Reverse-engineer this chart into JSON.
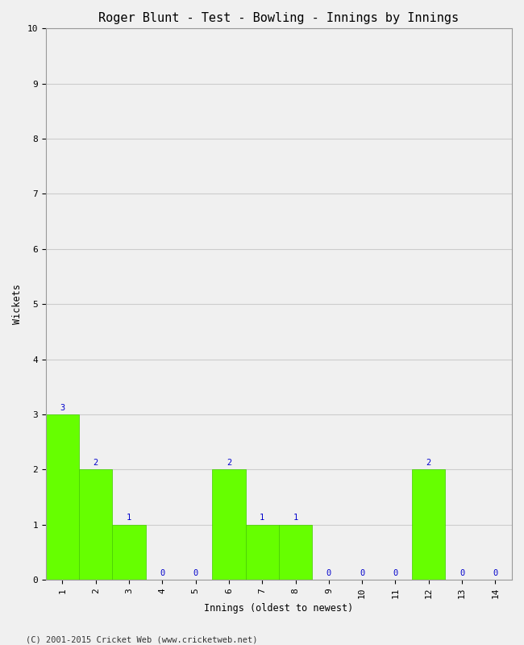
{
  "title": "Roger Blunt - Test - Bowling - Innings by Innings",
  "xlabel": "Innings (oldest to newest)",
  "ylabel": "Wickets",
  "innings": [
    1,
    2,
    3,
    4,
    5,
    6,
    7,
    8,
    9,
    10,
    11,
    12,
    13,
    14
  ],
  "wickets": [
    3,
    2,
    1,
    0,
    0,
    2,
    1,
    1,
    0,
    0,
    0,
    2,
    0,
    0
  ],
  "bar_color": "#66ff00",
  "bar_edge_color": "#44cc00",
  "ylim": [
    0,
    10
  ],
  "yticks": [
    0,
    1,
    2,
    3,
    4,
    5,
    6,
    7,
    8,
    9,
    10
  ],
  "label_color": "#0000cc",
  "label_fontsize": 7.5,
  "title_fontsize": 11,
  "axis_label_fontsize": 8.5,
  "tick_fontsize": 8,
  "footer": "(C) 2001-2015 Cricket Web (www.cricketweb.net)",
  "footer_fontsize": 7.5,
  "background_color": "#f0f0f0",
  "plot_bg_color": "#f0f0f0",
  "grid_color": "#cccccc"
}
